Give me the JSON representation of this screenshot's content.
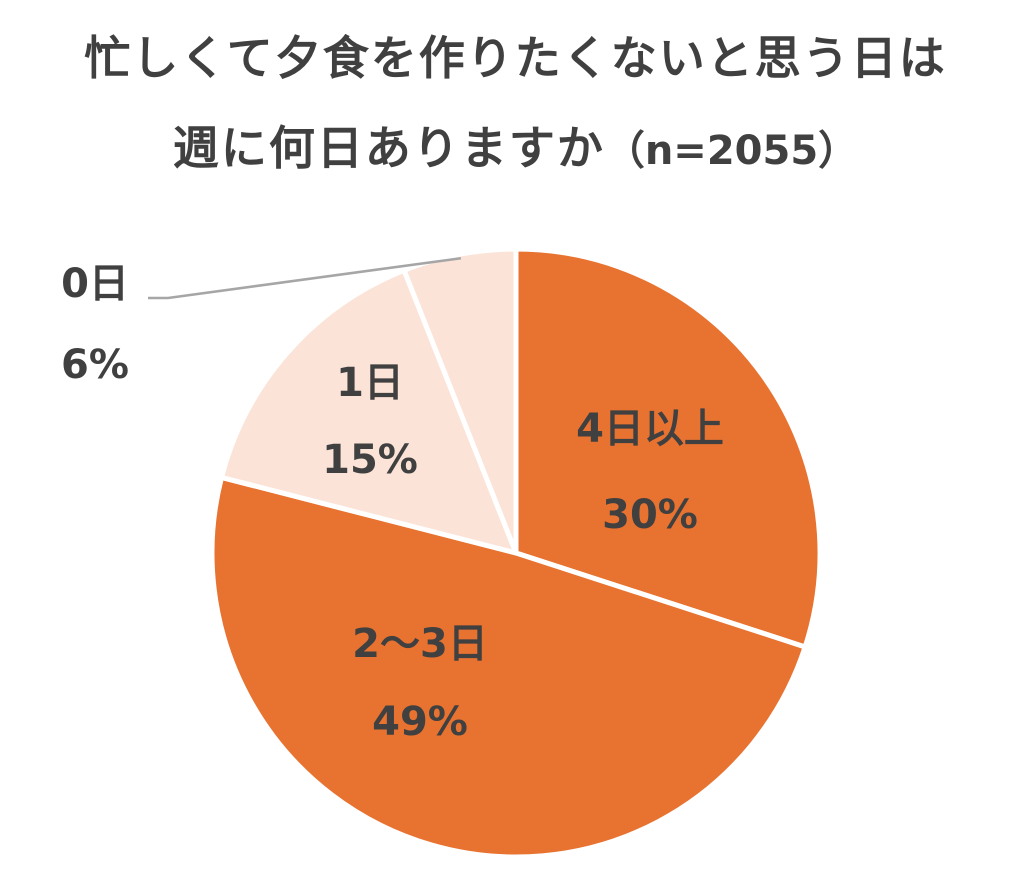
{
  "title": {
    "line1": "忙しくて夕食を作りたくないと思う日は",
    "line2": "週に何日ありますか",
    "sample_size": "（n=2055）"
  },
  "chart_data": {
    "type": "pie",
    "title": "忙しくて夕食を作りたくないと思う日は週に何日ありますか（n=2055）",
    "start": "12 o'clock, clockwise",
    "slices": [
      {
        "label": "4日以上",
        "value": 30,
        "value_label": "30%",
        "color": "#E87230"
      },
      {
        "label": "2～3日",
        "value": 49,
        "value_label": "49%",
        "color": "#E87230"
      },
      {
        "label": "1日",
        "value": 15,
        "value_label": "15%",
        "color": "#FBE3D8"
      },
      {
        "label": "0日",
        "value": 6,
        "value_label": "6%",
        "color": "#FBE3D8"
      }
    ],
    "edge_color": "#FFFFFF",
    "leader_line_color": "#A6A6A6"
  }
}
